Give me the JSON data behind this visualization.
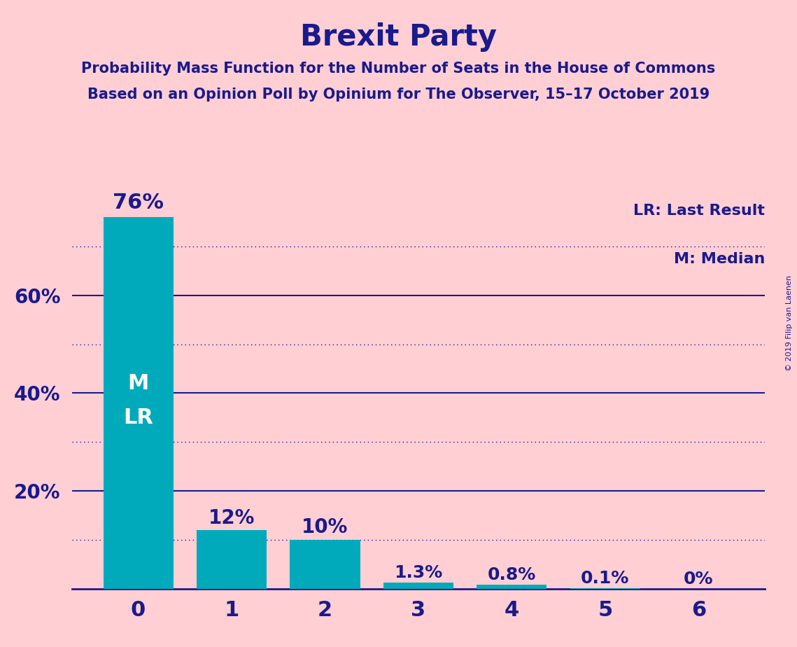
{
  "title": "Brexit Party",
  "subtitle1": "Probability Mass Function for the Number of Seats in the House of Commons",
  "subtitle2": "Based on an Opinion Poll by Opinium for The Observer, 15–17 October 2019",
  "copyright": "© 2019 Filip van Laenen",
  "categories": [
    0,
    1,
    2,
    3,
    4,
    5,
    6
  ],
  "values": [
    76,
    12,
    10,
    1.3,
    0.8,
    0.1,
    0.0
  ],
  "bar_color": "#00AABB",
  "bar_labels": [
    "76%",
    "12%",
    "10%",
    "1.3%",
    "0.8%",
    "0.1%",
    "0%"
  ],
  "median_bar": 0,
  "last_result_bar": 0,
  "background_color": "#FFCFD4",
  "title_color": "#1a1a8c",
  "bar_label_color_outside": "#1a1a8c",
  "bar_label_color_inside": "#FFFFFF",
  "axis_color": "#1a1a8c",
  "grid_solid_color": "#1a1a8c",
  "grid_dotted_color": "#1a1a8c",
  "legend_text_color": "#1a1a8c",
  "ylim": [
    0,
    82
  ],
  "grid_solid_at": [
    20,
    40,
    60
  ],
  "grid_dotted_at": [
    10,
    30,
    50,
    70
  ],
  "ytick_positions": [
    20,
    40,
    60
  ],
  "ytick_labels": [
    "20%",
    "40%",
    "60%"
  ]
}
